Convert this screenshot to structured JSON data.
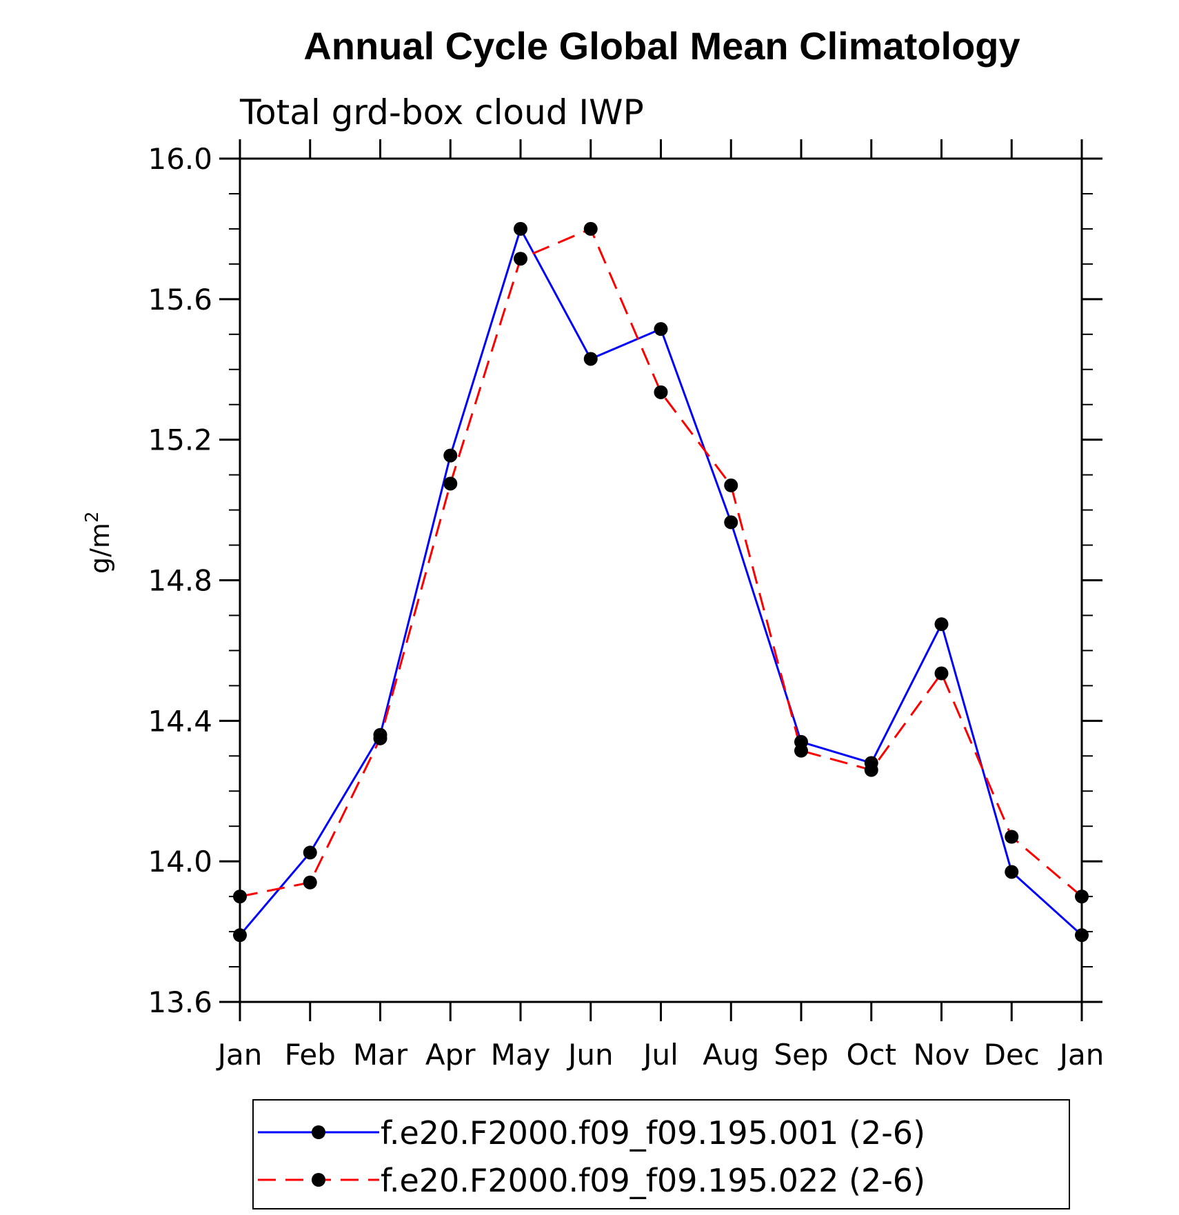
{
  "chart_data": {
    "type": "line",
    "title": "Annual Cycle Global Mean Climatology",
    "subtitle": "Total grd-box cloud IWP",
    "ylabel": "g/m",
    "ylabel_superscript": "2",
    "xlabel": "",
    "categories": [
      "Jan",
      "Feb",
      "Mar",
      "Apr",
      "May",
      "Jun",
      "Jul",
      "Aug",
      "Sep",
      "Oct",
      "Nov",
      "Dec",
      "Jan"
    ],
    "ylim": [
      13.6,
      16.0
    ],
    "yticks": [
      "16.0",
      "15.6",
      "15.2",
      "14.8",
      "14.4",
      "14.0",
      "13.6"
    ],
    "ytick_values": [
      16.0,
      15.6,
      15.2,
      14.8,
      14.4,
      14.0,
      13.6
    ],
    "grid": false,
    "legend_position": "bottom",
    "series": [
      {
        "name": "f.e20.F2000.f09_f09.195.001 (2-6)",
        "color": "#0000ff",
        "line_style": "solid",
        "marker": "filled-circle",
        "values": [
          13.79,
          14.025,
          14.36,
          15.155,
          15.8,
          15.43,
          15.515,
          14.965,
          14.34,
          14.28,
          14.675,
          13.97,
          13.79
        ]
      },
      {
        "name": "f.e20.F2000.f09_f09.195.022 (2-6)",
        "color": "#ff0000",
        "line_style": "dashed",
        "marker": "filled-circle",
        "values": [
          13.9,
          13.94,
          14.35,
          15.075,
          15.715,
          15.8,
          15.335,
          15.07,
          14.315,
          14.26,
          14.535,
          14.07,
          13.9
        ]
      }
    ]
  }
}
